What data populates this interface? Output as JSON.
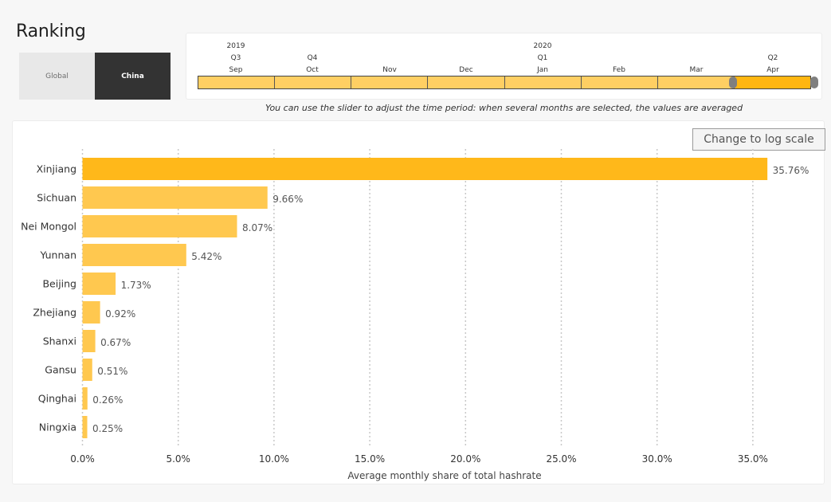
{
  "page": {
    "title": "Ranking"
  },
  "toggle": {
    "options": [
      "Global",
      "China"
    ],
    "selected": "China"
  },
  "timeline": {
    "years": [
      "2019",
      "2020"
    ],
    "quarters": [
      "Q3",
      "Q4",
      "Q1",
      "Q2"
    ],
    "months": [
      "Sep",
      "Oct",
      "Nov",
      "Dec",
      "Jan",
      "Feb",
      "Mar",
      "Apr"
    ],
    "selected_months": [
      "Apr"
    ],
    "hint": "You can use the slider to adjust the time period: when several months are selected, the values are averaged"
  },
  "log_button": {
    "label": "Change to log scale"
  },
  "colors": {
    "bar_primary": "#ffb81a",
    "bar_secondary": "#ffc84f",
    "slider_unselected": "#ffcf63",
    "slider_selected": "#ffb611",
    "toggle_selected": "#333333"
  },
  "chart_data": {
    "type": "bar",
    "orientation": "horizontal",
    "categories": [
      "Xinjiang",
      "Sichuan",
      "Nei Mongol",
      "Yunnan",
      "Beijing",
      "Zhejiang",
      "Shanxi",
      "Gansu",
      "Qinghai",
      "Ningxia"
    ],
    "values": [
      35.76,
      9.66,
      8.07,
      5.42,
      1.73,
      0.92,
      0.67,
      0.51,
      0.26,
      0.25
    ],
    "value_labels": [
      "35.76%",
      "9.66%",
      "8.07%",
      "5.42%",
      "1.73%",
      "0.92%",
      "0.67%",
      "0.51%",
      "0.26%",
      "0.25%"
    ],
    "xlabel": "Average monthly share of total hashrate",
    "ylabel": "",
    "xlim": [
      0,
      38.5
    ],
    "xticks": [
      0,
      5,
      10,
      15,
      20,
      25,
      30,
      35
    ],
    "xtick_labels": [
      "0.0%",
      "5.0%",
      "10.0%",
      "15.0%",
      "20.0%",
      "25.0%",
      "30.0%",
      "35.0%"
    ],
    "grid": "vertical dotted"
  }
}
